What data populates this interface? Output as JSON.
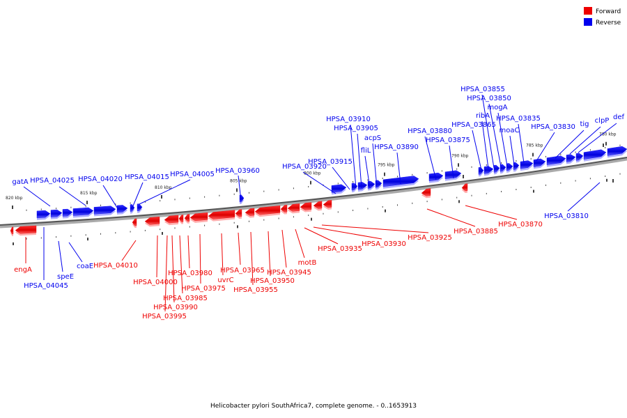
{
  "legend": {
    "forward_label": "Forward",
    "reverse_label": "Reverse",
    "forward_color": "#ee0000",
    "reverse_color": "#0000ee"
  },
  "caption": "Helicobacter pylori SouthAfrica7, complete genome. - 0..1653913",
  "kbp_labels": [
    "820 kbp",
    "815 kbp",
    "810 kbp",
    "805 kbp",
    "800 kbp",
    "795 kbp",
    "790 kbp",
    "785 kbp",
    "780 kbp"
  ],
  "forward_genes": [
    "engA",
    "HPSA_04010",
    "HPSA_04000",
    "HPSA_03995",
    "HPSA_03990",
    "HPSA_03985",
    "HPSA_03980",
    "HPSA_03975",
    "uvrC",
    "HPSA_03965",
    "HPSA_03955",
    "HPSA_03950",
    "HPSA_03945",
    "motB",
    "HPSA_03935",
    "HPSA_03930",
    "HPSA_03925",
    "HPSA_03885",
    "HPSA_03870"
  ],
  "reverse_genes": [
    "gatA",
    "HPSA_04045",
    "speE",
    "coaE",
    "HPSA_04025",
    "HPSA_04020",
    "HPSA_04015",
    "HPSA_04005",
    "HPSA_03960",
    "HPSA_03920",
    "HPSA_03915",
    "HPSA_03910",
    "HPSA_03905",
    "fliL",
    "acpS",
    "HPSA_03890",
    "HPSA_03880",
    "HPSA_03875",
    "HPSA_03865",
    "ribA",
    "HPSA_03855",
    "HPSA_03850",
    "mogA",
    "moaC",
    "HPSA_03835",
    "HPSA_03830",
    "tig",
    "clpP",
    "def",
    "HPSA_03810"
  ]
}
